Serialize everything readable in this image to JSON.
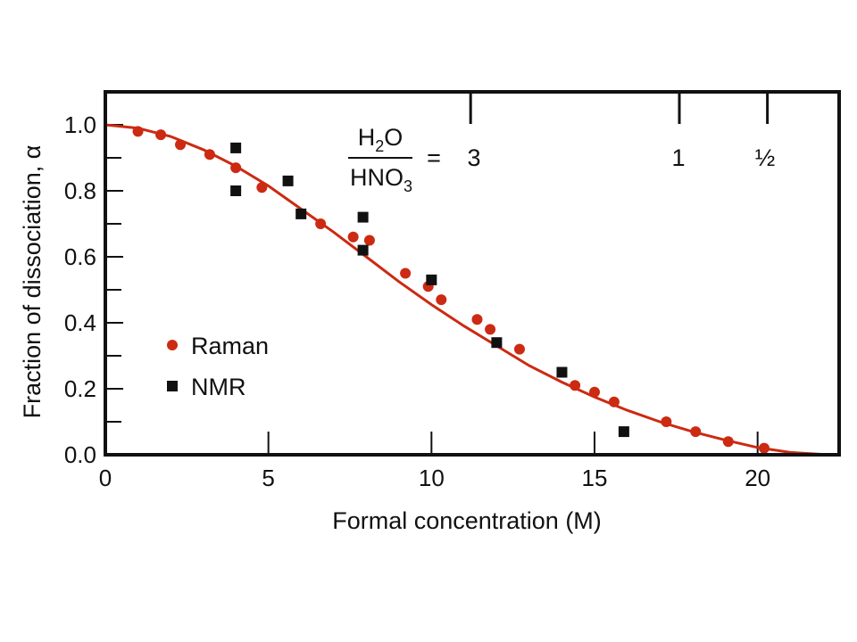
{
  "chart_data": {
    "type": "scatter",
    "xlabel": "Formal concentration (M)",
    "ylabel": "Fraction of dissociation, α",
    "xlim": [
      0,
      22.5
    ],
    "ylim": [
      0,
      1.1
    ],
    "xticks": [
      "0",
      "5",
      "10",
      "15",
      "20"
    ],
    "yticks": [
      "0.0",
      "0.2",
      "0.4",
      "0.6",
      "0.8",
      "1.0"
    ],
    "grid": false,
    "legend": "left-center",
    "ratio_label": {
      "numerator": "H2O",
      "numerator_sub": "2",
      "denominator": "HNO3",
      "denominator_sub": "3",
      "equals": "=",
      "markers": [
        {
          "x": 11.2,
          "label": "3"
        },
        {
          "x": 17.6,
          "label": "1"
        },
        {
          "x": 20.3,
          "label": "½"
        }
      ]
    },
    "series": [
      {
        "name": "Raman",
        "marker": "circle",
        "color": "#cc2a12",
        "points": [
          [
            1.0,
            0.98
          ],
          [
            1.7,
            0.97
          ],
          [
            2.3,
            0.94
          ],
          [
            3.2,
            0.91
          ],
          [
            4.0,
            0.87
          ],
          [
            4.8,
            0.81
          ],
          [
            6.6,
            0.7
          ],
          [
            7.6,
            0.66
          ],
          [
            8.1,
            0.65
          ],
          [
            9.2,
            0.55
          ],
          [
            9.9,
            0.51
          ],
          [
            10.3,
            0.47
          ],
          [
            11.4,
            0.41
          ],
          [
            11.8,
            0.38
          ],
          [
            12.7,
            0.32
          ],
          [
            14.4,
            0.21
          ],
          [
            15.0,
            0.19
          ],
          [
            15.6,
            0.16
          ],
          [
            17.2,
            0.1
          ],
          [
            18.1,
            0.07
          ],
          [
            19.1,
            0.04
          ],
          [
            20.2,
            0.02
          ]
        ]
      },
      {
        "name": "NMR",
        "marker": "square",
        "color": "#111111",
        "points": [
          [
            4.0,
            0.93
          ],
          [
            4.0,
            0.8
          ],
          [
            5.6,
            0.83
          ],
          [
            6.0,
            0.73
          ],
          [
            7.9,
            0.72
          ],
          [
            7.9,
            0.62
          ],
          [
            10.0,
            0.53
          ],
          [
            12.0,
            0.34
          ],
          [
            14.0,
            0.25
          ],
          [
            15.9,
            0.07
          ]
        ]
      }
    ],
    "fit_curve": {
      "color": "#cc2a12",
      "points": [
        [
          0,
          1.0
        ],
        [
          1,
          0.99
        ],
        [
          2,
          0.965
        ],
        [
          3,
          0.925
        ],
        [
          4,
          0.875
        ],
        [
          5,
          0.815
        ],
        [
          6,
          0.745
        ],
        [
          7,
          0.675
        ],
        [
          8,
          0.6
        ],
        [
          9,
          0.525
        ],
        [
          10,
          0.455
        ],
        [
          11,
          0.39
        ],
        [
          12,
          0.33
        ],
        [
          13,
          0.27
        ],
        [
          14,
          0.22
        ],
        [
          15,
          0.175
        ],
        [
          16,
          0.135
        ],
        [
          17,
          0.1
        ],
        [
          18,
          0.07
        ],
        [
          19,
          0.045
        ],
        [
          20,
          0.022
        ],
        [
          21,
          0.007
        ],
        [
          22,
          0.001
        ],
        [
          22.5,
          0.0
        ]
      ]
    }
  }
}
